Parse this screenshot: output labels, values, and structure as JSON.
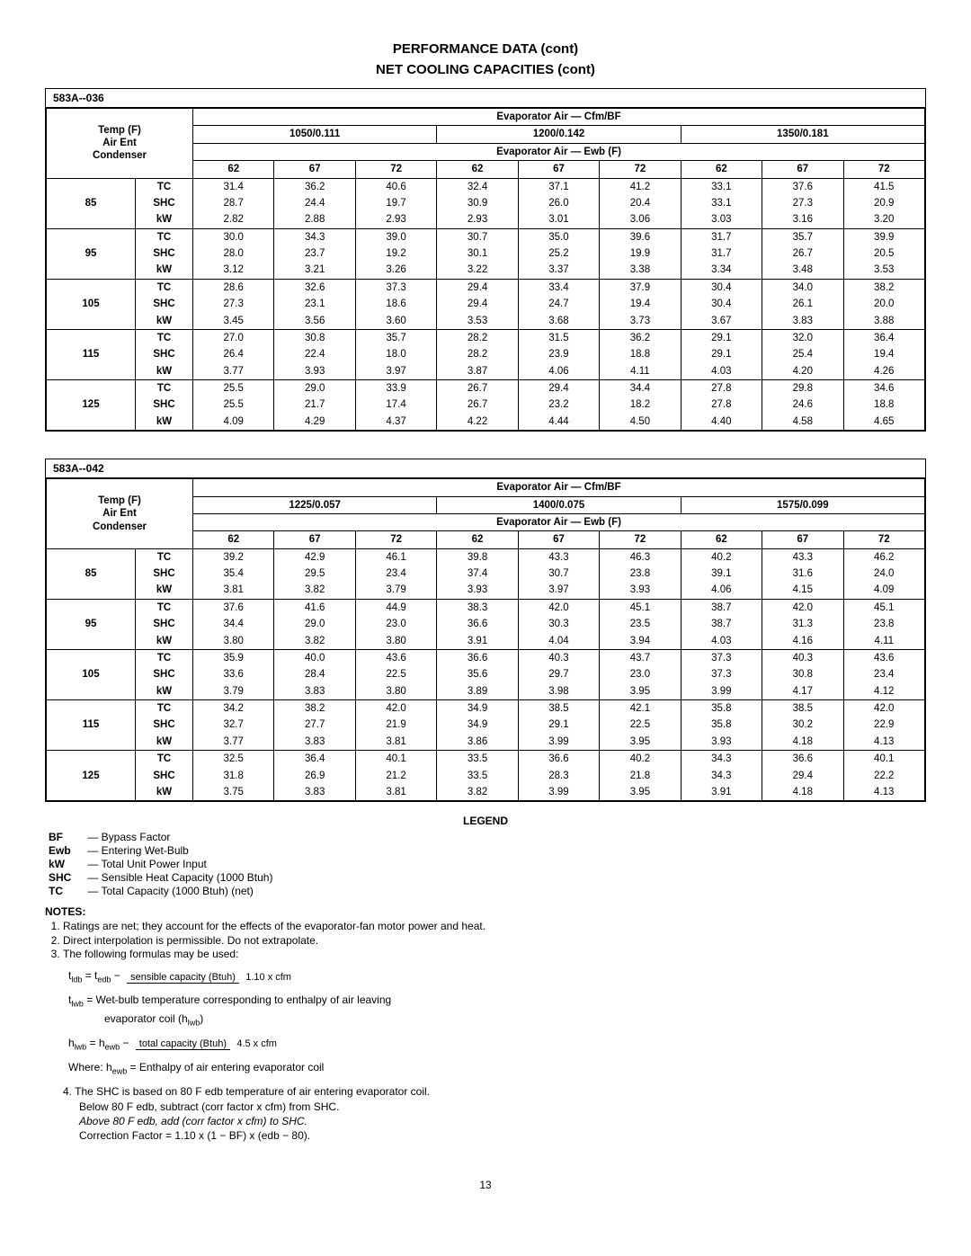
{
  "titles": {
    "t1": "PERFORMANCE DATA (cont)",
    "t2": "NET COOLING CAPACITIES (cont)"
  },
  "tables": [
    {
      "model": "583A--036",
      "cfm_bf_header": "Evaporator Air — Cfm/BF",
      "cfm_bf_values": [
        "1050/0.111",
        "1200/0.142",
        "1350/0.181"
      ],
      "ewb_header": "Evaporator Air — Ewb (F)",
      "ewb_values": [
        "62",
        "67",
        "72",
        "62",
        "67",
        "72",
        "62",
        "67",
        "72"
      ],
      "temp_header": "Temp (F)\nAir Ent\nCondenser",
      "rows": [
        {
          "temp": "85",
          "metrics": [
            "TC",
            "SHC",
            "kW"
          ],
          "vals": [
            [
              "31.4",
              "28.7",
              "2.82"
            ],
            [
              "36.2",
              "24.4",
              "2.88"
            ],
            [
              "40.6",
              "19.7",
              "2.93"
            ],
            [
              "32.4",
              "30.9",
              "2.93"
            ],
            [
              "37.1",
              "26.0",
              "3.01"
            ],
            [
              "41.2",
              "20.4",
              "3.06"
            ],
            [
              "33.1",
              "33.1",
              "3.03"
            ],
            [
              "37.6",
              "27.3",
              "3.16"
            ],
            [
              "41.5",
              "20.9",
              "3.20"
            ]
          ]
        },
        {
          "temp": "95",
          "metrics": [
            "TC",
            "SHC",
            "kW"
          ],
          "vals": [
            [
              "30.0",
              "28.0",
              "3.12"
            ],
            [
              "34.3",
              "23.7",
              "3.21"
            ],
            [
              "39.0",
              "19.2",
              "3.26"
            ],
            [
              "30.7",
              "30.1",
              "3.22"
            ],
            [
              "35.0",
              "25.2",
              "3.37"
            ],
            [
              "39.6",
              "19.9",
              "3.38"
            ],
            [
              "31.7",
              "31.7",
              "3.34"
            ],
            [
              "35.7",
              "26.7",
              "3.48"
            ],
            [
              "39.9",
              "20.5",
              "3.53"
            ]
          ]
        },
        {
          "temp": "105",
          "metrics": [
            "TC",
            "SHC",
            "kW"
          ],
          "vals": [
            [
              "28.6",
              "27.3",
              "3.45"
            ],
            [
              "32.6",
              "23.1",
              "3.56"
            ],
            [
              "37.3",
              "18.6",
              "3.60"
            ],
            [
              "29.4",
              "29.4",
              "3.53"
            ],
            [
              "33.4",
              "24.7",
              "3.68"
            ],
            [
              "37.9",
              "19.4",
              "3.73"
            ],
            [
              "30.4",
              "30.4",
              "3.67"
            ],
            [
              "34.0",
              "26.1",
              "3.83"
            ],
            [
              "38.2",
              "20.0",
              "3.88"
            ]
          ]
        },
        {
          "temp": "115",
          "metrics": [
            "TC",
            "SHC",
            "kW"
          ],
          "vals": [
            [
              "27.0",
              "26.4",
              "3.77"
            ],
            [
              "30.8",
              "22.4",
              "3.93"
            ],
            [
              "35.7",
              "18.0",
              "3.97"
            ],
            [
              "28.2",
              "28.2",
              "3.87"
            ],
            [
              "31.5",
              "23.9",
              "4.06"
            ],
            [
              "36.2",
              "18.8",
              "4.11"
            ],
            [
              "29.1",
              "29.1",
              "4.03"
            ],
            [
              "32.0",
              "25.4",
              "4.20"
            ],
            [
              "36.4",
              "19.4",
              "4.26"
            ]
          ]
        },
        {
          "temp": "125",
          "metrics": [
            "TC",
            "SHC",
            "kW"
          ],
          "vals": [
            [
              "25.5",
              "25.5",
              "4.09"
            ],
            [
              "29.0",
              "21.7",
              "4.29"
            ],
            [
              "33.9",
              "17.4",
              "4.37"
            ],
            [
              "26.7",
              "26.7",
              "4.22"
            ],
            [
              "29.4",
              "23.2",
              "4.44"
            ],
            [
              "34.4",
              "18.2",
              "4.50"
            ],
            [
              "27.8",
              "27.8",
              "4.40"
            ],
            [
              "29.8",
              "24.6",
              "4.58"
            ],
            [
              "34.6",
              "18.8",
              "4.65"
            ]
          ]
        }
      ]
    },
    {
      "model": "583A--042",
      "cfm_bf_header": "Evaporator Air — Cfm/BF",
      "cfm_bf_values": [
        "1225/0.057",
        "1400/0.075",
        "1575/0.099"
      ],
      "ewb_header": "Evaporator Air — Ewb (F)",
      "ewb_values": [
        "62",
        "67",
        "72",
        "62",
        "67",
        "72",
        "62",
        "67",
        "72"
      ],
      "temp_header": "Temp (F)\nAir Ent\nCondenser",
      "rows": [
        {
          "temp": "85",
          "metrics": [
            "TC",
            "SHC",
            "kW"
          ],
          "vals": [
            [
              "39.2",
              "35.4",
              "3.81"
            ],
            [
              "42.9",
              "29.5",
              "3.82"
            ],
            [
              "46.1",
              "23.4",
              "3.79"
            ],
            [
              "39.8",
              "37.4",
              "3.93"
            ],
            [
              "43.3",
              "30.7",
              "3.97"
            ],
            [
              "46.3",
              "23.8",
              "3.93"
            ],
            [
              "40.2",
              "39.1",
              "4.06"
            ],
            [
              "43.3",
              "31.6",
              "4.15"
            ],
            [
              "46.2",
              "24.0",
              "4.09"
            ]
          ]
        },
        {
          "temp": "95",
          "metrics": [
            "TC",
            "SHC",
            "kW"
          ],
          "vals": [
            [
              "37.6",
              "34.4",
              "3.80"
            ],
            [
              "41.6",
              "29.0",
              "3.82"
            ],
            [
              "44.9",
              "23.0",
              "3.80"
            ],
            [
              "38.3",
              "36.6",
              "3.91"
            ],
            [
              "42.0",
              "30.3",
              "4.04"
            ],
            [
              "45.1",
              "23.5",
              "3.94"
            ],
            [
              "38.7",
              "38.7",
              "4.03"
            ],
            [
              "42.0",
              "31.3",
              "4.16"
            ],
            [
              "45.1",
              "23.8",
              "4.11"
            ]
          ]
        },
        {
          "temp": "105",
          "metrics": [
            "TC",
            "SHC",
            "kW"
          ],
          "vals": [
            [
              "35.9",
              "33.6",
              "3.79"
            ],
            [
              "40.0",
              "28.4",
              "3.83"
            ],
            [
              "43.6",
              "22.5",
              "3.80"
            ],
            [
              "36.6",
              "35.6",
              "3.89"
            ],
            [
              "40.3",
              "29.7",
              "3.98"
            ],
            [
              "43.7",
              "23.0",
              "3.95"
            ],
            [
              "37.3",
              "37.3",
              "3.99"
            ],
            [
              "40.3",
              "30.8",
              "4.17"
            ],
            [
              "43.6",
              "23.4",
              "4.12"
            ]
          ]
        },
        {
          "temp": "115",
          "metrics": [
            "TC",
            "SHC",
            "kW"
          ],
          "vals": [
            [
              "34.2",
              "32.7",
              "3.77"
            ],
            [
              "38.2",
              "27.7",
              "3.83"
            ],
            [
              "42.0",
              "21.9",
              "3.81"
            ],
            [
              "34.9",
              "34.9",
              "3.86"
            ],
            [
              "38.5",
              "29.1",
              "3.99"
            ],
            [
              "42.1",
              "22.5",
              "3.95"
            ],
            [
              "35.8",
              "35.8",
              "3.93"
            ],
            [
              "38.5",
              "30.2",
              "4.18"
            ],
            [
              "42.0",
              "22.9",
              "4.13"
            ]
          ]
        },
        {
          "temp": "125",
          "metrics": [
            "TC",
            "SHC",
            "kW"
          ],
          "vals": [
            [
              "32.5",
              "31.8",
              "3.75"
            ],
            [
              "36.4",
              "26.9",
              "3.83"
            ],
            [
              "40.1",
              "21.2",
              "3.81"
            ],
            [
              "33.5",
              "33.5",
              "3.82"
            ],
            [
              "36.6",
              "28.3",
              "3.99"
            ],
            [
              "40.2",
              "21.8",
              "3.95"
            ],
            [
              "34.3",
              "34.3",
              "3.91"
            ],
            [
              "36.6",
              "29.4",
              "4.18"
            ],
            [
              "40.1",
              "22.2",
              "4.13"
            ]
          ]
        }
      ]
    }
  ],
  "legend": {
    "title": "LEGEND",
    "items": [
      {
        "key": "BF",
        "dash": "—",
        "desc": "Bypass Factor"
      },
      {
        "key": "Ewb",
        "dash": "—",
        "desc": "Entering Wet-Bulb"
      },
      {
        "key": "kW",
        "dash": "—",
        "desc": "Total Unit Power Input"
      },
      {
        "key": "SHC",
        "dash": "—",
        "desc": "Sensible Heat Capacity (1000 Btuh)"
      },
      {
        "key": "TC",
        "dash": "—",
        "desc": "Total Capacity (1000 Btuh) (net)"
      }
    ]
  },
  "notes": {
    "title": "NOTES:",
    "list": [
      "Ratings are net; they account for the effects of the evaporator-fan motor power and heat.",
      "Direct interpolation is permissible. Do not extrapolate.",
      "The following formulas may be used:"
    ]
  },
  "formulas": {
    "f1_left": "t",
    "f1_left_sub": "ldb",
    "f1_eq1": " =  t",
    "f1_mid_sub": "edb",
    "f1_eq2": "  −  ",
    "f1_num": "sensible capacity (Btuh)",
    "f1_den": "1.10  x  cfm",
    "f2_l": "t",
    "f2_l_sub": "lwb",
    "f2_eq": " =  Wet-bulb temperature corresponding to enthalpy of air leaving",
    "f2_line2a": "evaporator coil (h",
    "f2_line2b": "lwb",
    "f2_line2c": ")",
    "f3_l": "h",
    "f3_l_sub": "lwb",
    "f3_eq1": " =   h",
    "f3_mid_sub": "ewb",
    "f3_eq2": "  −  ",
    "f3_num": "total capacity (Btuh)",
    "f3_den": "4.5  x  cfm",
    "where_pre": "Where:    h",
    "where_sub": "ewb",
    "where_post": "  =  Enthalpy of air entering evaporator coil"
  },
  "note4": {
    "l1": "4.  The SHC is based on 80 F edb temperature of air entering evaporator coil.",
    "l2": "Below 80 F edb, subtract (corr factor x cfm) from SHC.",
    "l3": "Above 80 F edb, add (corr factor x cfm) to SHC.",
    "l4": "Correction Factor = 1.10 x (1 − BF) x (edb − 80)."
  },
  "page": "13"
}
